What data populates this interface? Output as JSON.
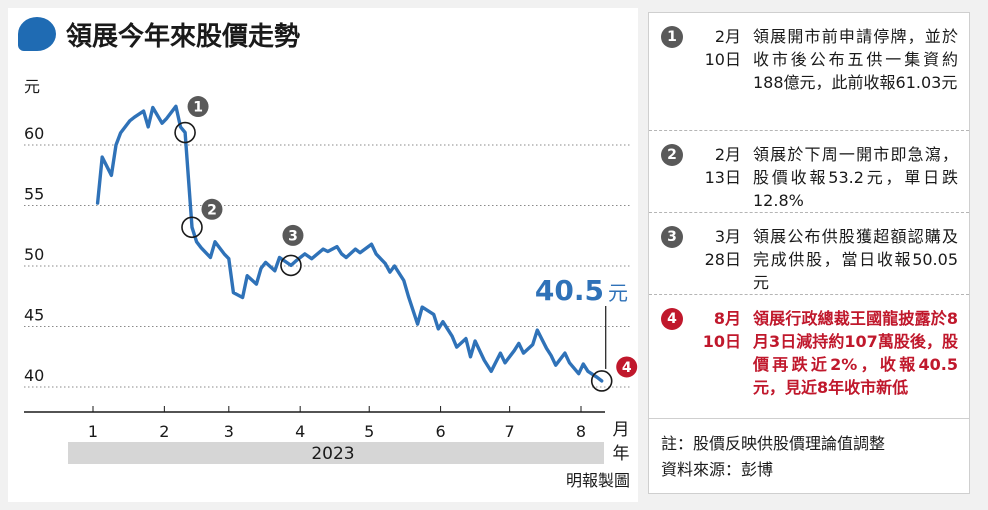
{
  "title": "領展今年來股價走勢",
  "credit": "明報製圖",
  "chart_data": {
    "type": "line",
    "ylabel": "元",
    "xlabel": "月",
    "year_label": "年",
    "year": "2023",
    "yticks": [
      40,
      45,
      50,
      55,
      60
    ],
    "ytick_labels": [
      "40",
      "45",
      "50",
      "55",
      "60"
    ],
    "ylim": [
      38,
      66
    ],
    "month_ticks": [
      "1",
      "2",
      "3",
      "4",
      "5",
      "6",
      "7",
      "8"
    ],
    "grid": "horizontal dotted",
    "line_color": "#2f72b8",
    "series": [
      {
        "x": [
          "2023-01-03",
          "2023-01-05",
          "2023-01-09",
          "2023-01-11",
          "2023-01-13",
          "2023-01-17",
          "2023-01-19",
          "2023-01-23",
          "2023-01-25",
          "2023-01-27",
          "2023-01-31",
          "2023-02-02",
          "2023-02-06",
          "2023-02-08",
          "2023-02-10",
          "2023-02-13",
          "2023-02-15",
          "2023-02-17",
          "2023-02-21",
          "2023-02-23",
          "2023-02-27",
          "2023-03-01",
          "2023-03-03",
          "2023-03-07",
          "2023-03-09",
          "2023-03-13",
          "2023-03-15",
          "2023-03-17",
          "2023-03-21",
          "2023-03-23",
          "2023-03-28",
          "2023-03-30",
          "2023-04-03",
          "2023-04-06",
          "2023-04-11",
          "2023-04-13",
          "2023-04-17",
          "2023-04-19",
          "2023-04-21",
          "2023-04-25",
          "2023-04-27",
          "2023-05-02",
          "2023-05-04",
          "2023-05-08",
          "2023-05-10",
          "2023-05-12",
          "2023-05-16",
          "2023-05-18",
          "2023-05-22",
          "2023-05-24",
          "2023-05-29",
          "2023-05-31",
          "2023-06-02",
          "2023-06-06",
          "2023-06-08",
          "2023-06-12",
          "2023-06-14",
          "2023-06-16",
          "2023-06-20",
          "2023-06-23",
          "2023-06-27",
          "2023-06-29",
          "2023-07-03",
          "2023-07-05",
          "2023-07-07",
          "2023-07-11",
          "2023-07-13",
          "2023-07-17",
          "2023-07-19",
          "2023-07-21",
          "2023-07-25",
          "2023-07-27",
          "2023-07-31",
          "2023-08-02",
          "2023-08-04",
          "2023-08-08",
          "2023-08-10"
        ],
        "values": [
          55.2,
          59.0,
          57.5,
          60.0,
          61.0,
          62.0,
          62.3,
          62.8,
          61.5,
          63.1,
          61.8,
          62.2,
          63.2,
          61.5,
          61.03,
          53.2,
          52.0,
          51.5,
          50.7,
          52.0,
          51.0,
          50.6,
          47.8,
          47.4,
          49.2,
          48.5,
          49.8,
          50.3,
          49.6,
          50.7,
          50.05,
          50.4,
          51.0,
          50.6,
          51.4,
          51.2,
          51.6,
          51.0,
          50.7,
          51.4,
          51.1,
          51.8,
          51.0,
          50.2,
          49.5,
          50.0,
          48.8,
          47.5,
          45.2,
          46.6,
          46.0,
          44.8,
          45.4,
          44.2,
          43.3,
          44.0,
          42.5,
          43.8,
          42.2,
          41.3,
          42.8,
          42.0,
          43.0,
          43.6,
          42.8,
          43.5,
          44.7,
          43.2,
          42.6,
          41.8,
          42.8,
          42.0,
          41.1,
          41.9,
          41.3,
          40.8,
          40.5
        ]
      }
    ],
    "markers": [
      {
        "number": "1",
        "date": "2023-02-10",
        "value": 61.03
      },
      {
        "number": "2",
        "date": "2023-02-13",
        "value": 53.2
      },
      {
        "number": "3",
        "date": "2023-03-28",
        "value": 50.05
      },
      {
        "number": "4",
        "date": "2023-08-10",
        "value": 40.5
      }
    ],
    "last_value_label": "40.5",
    "last_value_unit": "元"
  },
  "notes": [
    {
      "number": "1",
      "date_month": "2月",
      "date_day": "10日",
      "text": "領展開市前申請停牌，並於收市後公布五供一集資約188億元，此前收報61.03元",
      "highlight": false,
      "color": "#595959"
    },
    {
      "number": "2",
      "date_month": "2月",
      "date_day": "13日",
      "text": "領展於下周一開市即急瀉，股價收報53.2元，單日跌12.8%",
      "highlight": false,
      "color": "#595959"
    },
    {
      "number": "3",
      "date_month": "3月",
      "date_day": "28日",
      "text": "領展公布供股獲超額認購及完成供股，當日收報50.05元",
      "highlight": false,
      "color": "#595959"
    },
    {
      "number": "4",
      "date_month": "8月",
      "date_day": "10日",
      "text": "領展行政總裁王國龍披露於8月3日減持約107萬股後，股價再跌近2%，收報40.5元，見近8年收市新低",
      "highlight": true,
      "color": "#c0182c"
    }
  ],
  "footnote_1": "註：股價反映供股價理論值調整",
  "footnote_2": "資料來源：彭博"
}
